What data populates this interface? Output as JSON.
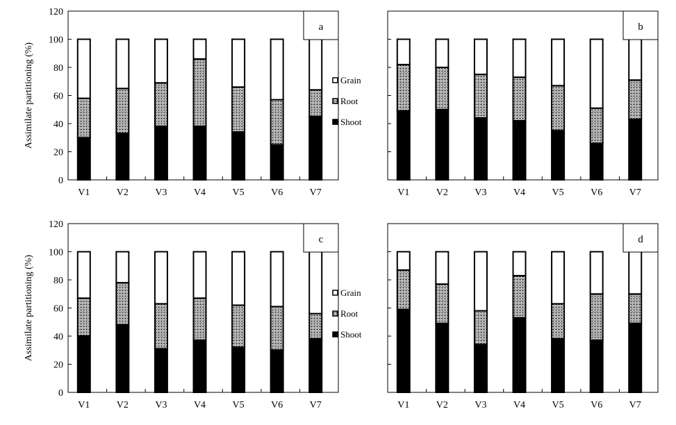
{
  "chart_data": [
    {
      "type": "bar",
      "stacked": true,
      "panel_label": "a",
      "categories": [
        "V1",
        "V2",
        "V3",
        "V4",
        "V5",
        "V6",
        "V7"
      ],
      "series": [
        {
          "name": "Shoot",
          "values": [
            30,
            33,
            38,
            38,
            34,
            25,
            45
          ]
        },
        {
          "name": "Root",
          "values": [
            28,
            32,
            31,
            48,
            32,
            32,
            19
          ]
        },
        {
          "name": "Grain",
          "values": [
            42,
            35,
            31,
            14,
            34,
            43,
            36
          ]
        }
      ],
      "ylabel": "Assimilate partitioning (%)",
      "ylim": [
        0,
        120
      ],
      "yticks": [
        "0",
        "20",
        "40",
        "60",
        "80",
        "100",
        "120"
      ],
      "legend": [
        "Grain",
        "Root",
        "Shoot"
      ]
    },
    {
      "type": "bar",
      "stacked": true,
      "panel_label": "b",
      "categories": [
        "V1",
        "V2",
        "V3",
        "V4",
        "V5",
        "V6",
        "V7"
      ],
      "series": [
        {
          "name": "Shoot",
          "values": [
            49,
            50,
            44,
            42,
            35,
            26,
            43
          ]
        },
        {
          "name": "Root",
          "values": [
            33,
            30,
            31,
            31,
            32,
            25,
            28
          ]
        },
        {
          "name": "Grain",
          "values": [
            18,
            20,
            25,
            27,
            33,
            49,
            29
          ]
        }
      ],
      "ylim": [
        0,
        120
      ]
    },
    {
      "type": "bar",
      "stacked": true,
      "panel_label": "c",
      "categories": [
        "V1",
        "V2",
        "V3",
        "V4",
        "V5",
        "V6",
        "V7"
      ],
      "series": [
        {
          "name": "Shoot",
          "values": [
            40,
            48,
            31,
            37,
            32,
            30,
            38
          ]
        },
        {
          "name": "Root",
          "values": [
            27,
            30,
            32,
            30,
            30,
            31,
            18
          ]
        },
        {
          "name": "Grain",
          "values": [
            33,
            22,
            37,
            33,
            38,
            39,
            44
          ]
        }
      ],
      "ylabel": "Assimilate partitioning (%)",
      "ylim": [
        0,
        120
      ],
      "yticks": [
        "0",
        "20",
        "40",
        "60",
        "80",
        "100",
        "120"
      ],
      "legend": [
        "Grain",
        "Root",
        "Shoot"
      ]
    },
    {
      "type": "bar",
      "stacked": true,
      "panel_label": "d",
      "categories": [
        "V1",
        "V2",
        "V3",
        "V4",
        "V5",
        "V6",
        "V7"
      ],
      "series": [
        {
          "name": "Shoot",
          "values": [
            59,
            49,
            34,
            53,
            38,
            37,
            49
          ]
        },
        {
          "name": "Root",
          "values": [
            28,
            28,
            24,
            30,
            25,
            33,
            21
          ]
        },
        {
          "name": "Grain",
          "values": [
            13,
            23,
            42,
            17,
            37,
            30,
            30
          ]
        }
      ],
      "ylim": [
        0,
        120
      ]
    }
  ]
}
